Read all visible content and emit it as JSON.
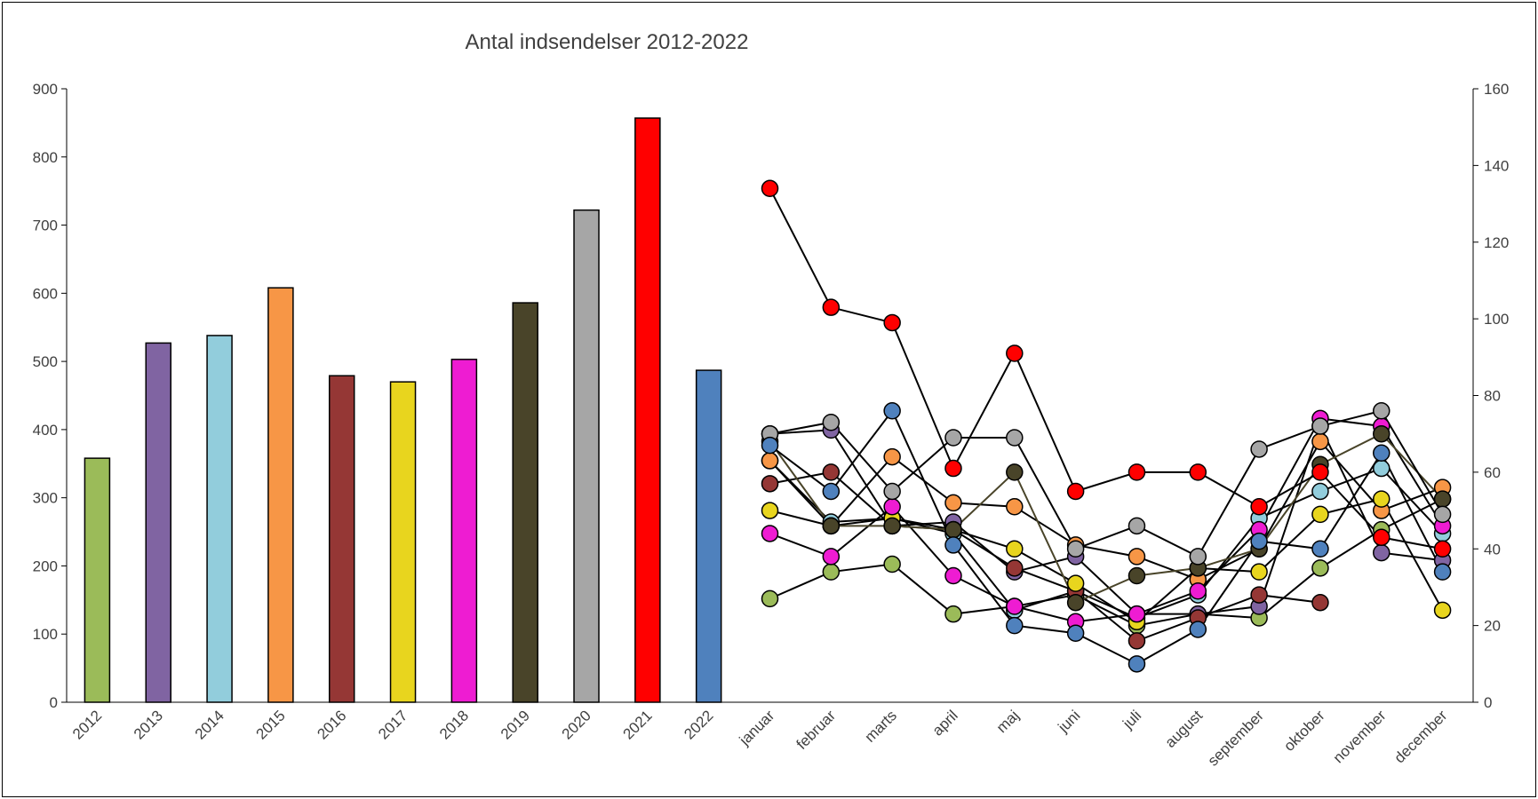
{
  "chart_data": {
    "type": "bar+line",
    "title": "Antal indsendelser 2012-2022",
    "bar_categories": [
      "2012",
      "2013",
      "2014",
      "2015",
      "2016",
      "2017",
      "2018",
      "2019",
      "2020",
      "2021",
      "2022"
    ],
    "bar_values": [
      358,
      527,
      538,
      608,
      479,
      470,
      503,
      586,
      722,
      857,
      487
    ],
    "bar_colors": [
      "#9BBB59",
      "#8064A2",
      "#92CDDC",
      "#F79646",
      "#953735",
      "#E8D51E",
      "#EE1CD2",
      "#494429",
      "#A6A6A6",
      "#FF0000",
      "#4F81BD"
    ],
    "left_axis": {
      "ylim": [
        0,
        900
      ],
      "ticks": [
        0,
        100,
        200,
        300,
        400,
        500,
        600,
        700,
        800,
        900
      ]
    },
    "right_axis": {
      "ylim": [
        0,
        160
      ],
      "ticks": [
        0,
        20,
        40,
        60,
        80,
        100,
        120,
        140,
        160
      ]
    },
    "line_categories": [
      "januar",
      "februar",
      "marts",
      "april",
      "maj",
      "juni",
      "juli",
      "august",
      "september",
      "oktober",
      "november",
      "december"
    ],
    "series": [
      {
        "year": "2012",
        "color": "#9BBB59",
        "values": [
          27,
          34,
          36,
          23,
          25,
          28,
          20,
          23,
          22,
          35,
          45,
          53
        ]
      },
      {
        "year": "2013",
        "color": "#8064A2",
        "values": [
          70,
          71,
          46,
          47,
          34,
          38,
          23,
          23,
          25,
          72,
          39,
          37
        ]
      },
      {
        "year": "2014",
        "color": "#92CDDC",
        "values": [
          63,
          47,
          48,
          44,
          24,
          29,
          22,
          28,
          48,
          55,
          61,
          44
        ]
      },
      {
        "year": "2015",
        "color": "#F79646",
        "values": [
          63,
          46,
          64,
          52,
          51,
          41,
          38,
          32,
          40,
          68,
          50,
          56
        ]
      },
      {
        "year": "2016",
        "color": "#953735",
        "values": [
          57,
          60,
          46,
          45,
          35,
          29,
          16,
          22,
          28,
          26,
          null,
          null
        ]
      },
      {
        "year": "2017",
        "color": "#E8D51E",
        "values": [
          50,
          46,
          48,
          45,
          40,
          31,
          21,
          35,
          34,
          49,
          53,
          24
        ]
      },
      {
        "year": "2018",
        "color": "#EE1CD2",
        "values": [
          44,
          38,
          51,
          33,
          25,
          21,
          23,
          29,
          45,
          74,
          72,
          46
        ]
      },
      {
        "year": "2019",
        "color": "#494429",
        "values": [
          68,
          46,
          46,
          45,
          60,
          26,
          33,
          35,
          40,
          62,
          70,
          53
        ]
      },
      {
        "year": "2020",
        "color": "#A6A6A6",
        "values": [
          70,
          73,
          55,
          69,
          69,
          40,
          46,
          38,
          66,
          72,
          76,
          49
        ]
      },
      {
        "year": "2021",
        "color": "#FF0000",
        "values": [
          134,
          103,
          99,
          61,
          91,
          55,
          60,
          60,
          51,
          60,
          43,
          40
        ]
      },
      {
        "year": "2022",
        "color": "#4F81BD",
        "values": [
          67,
          55,
          76,
          41,
          20,
          18,
          10,
          19,
          42,
          40,
          65,
          34
        ]
      }
    ]
  }
}
